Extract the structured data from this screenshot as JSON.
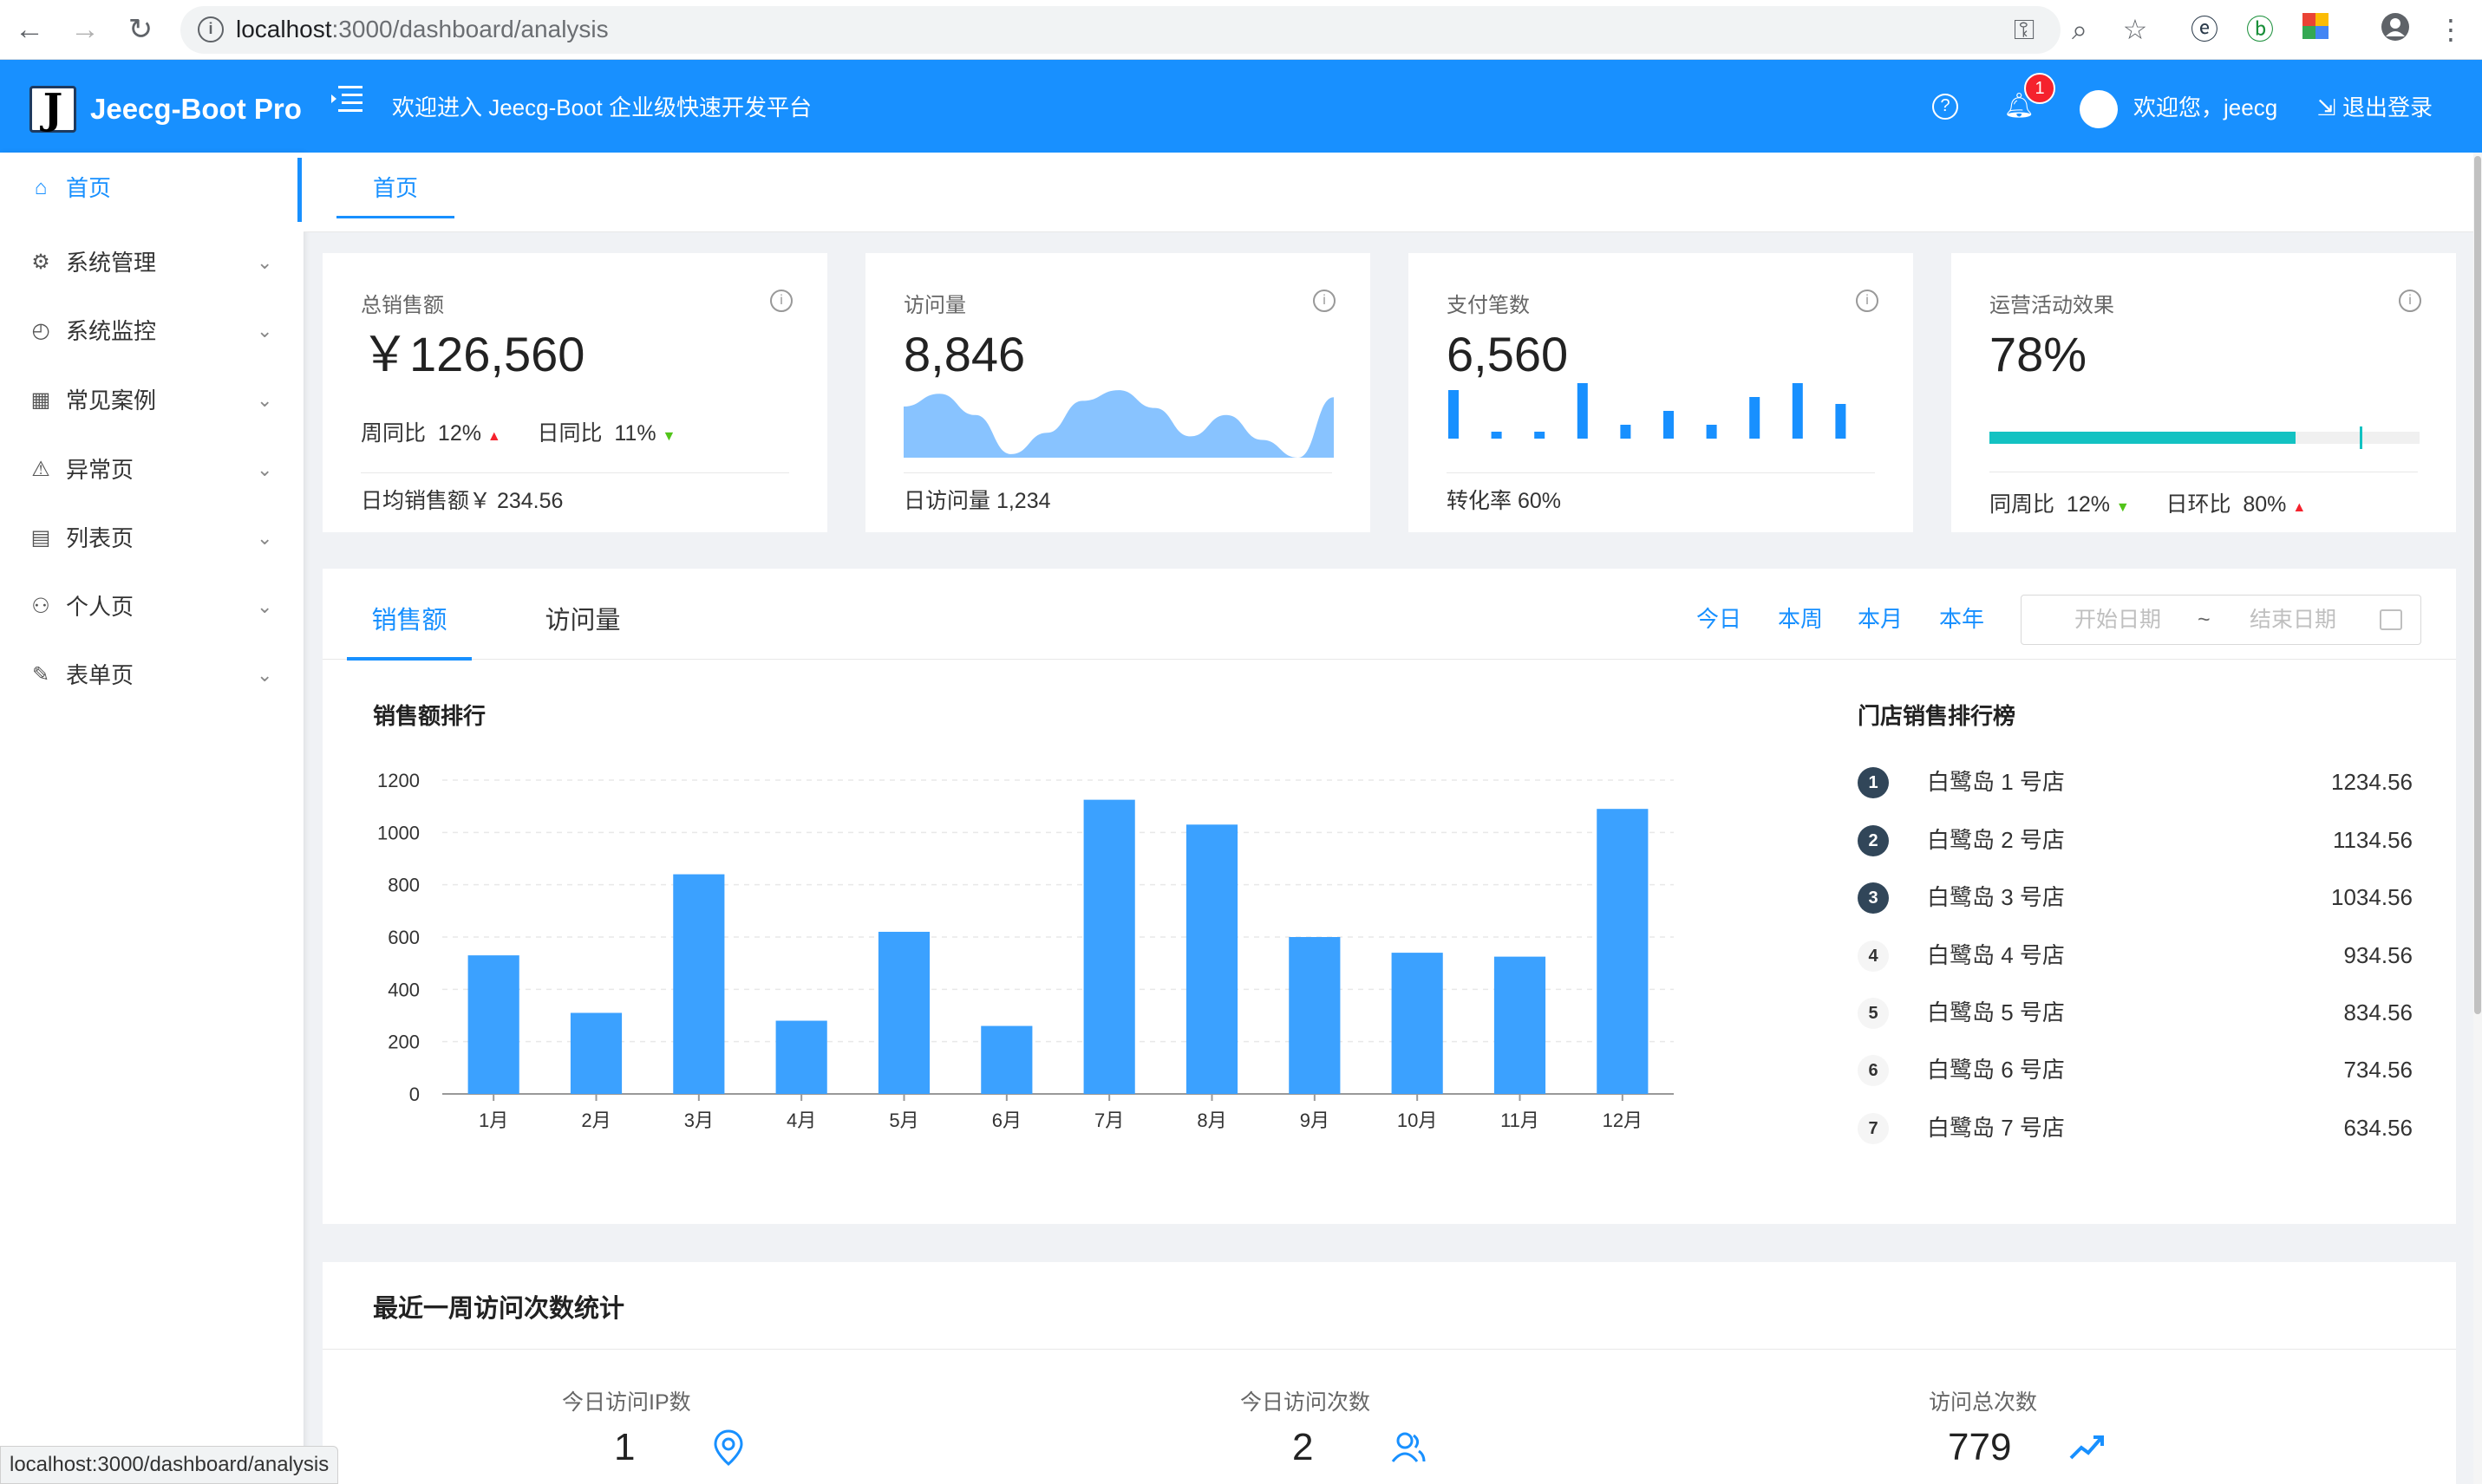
{
  "browser": {
    "url_host": "localhost",
    "url_path": ":3000/dashboard/analysis",
    "status_url": "localhost:3000/dashboard/analysis"
  },
  "header": {
    "brand": "Jeecg-Boot Pro",
    "logo_letter": "J",
    "welcome": "欢迎进入 Jeecg-Boot 企业级快速开发平台",
    "notification_count": "1",
    "user_greeting": "欢迎您，jeecg",
    "logout": "退出登录"
  },
  "sidebar": {
    "items": [
      {
        "label": "首页",
        "icon": "home-icon"
      },
      {
        "label": "系统管理",
        "icon": "gear-icon"
      },
      {
        "label": "系统监控",
        "icon": "dashboard-icon"
      },
      {
        "label": "常见案例",
        "icon": "qrcode-icon"
      },
      {
        "label": "异常页",
        "icon": "warning-icon"
      },
      {
        "label": "列表页",
        "icon": "table-icon"
      },
      {
        "label": "个人页",
        "icon": "user-icon"
      },
      {
        "label": "表单页",
        "icon": "form-icon"
      }
    ]
  },
  "tabs": {
    "home": "首页"
  },
  "kpi": {
    "total_sales": {
      "title": "总销售额",
      "value": "￥126,560",
      "week_label": "周同比",
      "week_value": "12%",
      "day_label": "日同比",
      "day_value": "11%",
      "footer": "日均销售额￥ 234.56"
    },
    "visits": {
      "title": "访问量",
      "value": "8,846",
      "footer": "日访问量 1,234",
      "area_points": [
        0.72,
        0.9,
        0.6,
        0.05,
        0.35,
        0.8,
        0.95,
        0.7,
        0.3,
        0.6,
        0.25,
        0.0,
        0.85
      ]
    },
    "payments": {
      "title": "支付笔数",
      "value": "6,560",
      "footer": "转化率 60%",
      "bar_values": [
        7,
        1,
        1,
        8,
        2,
        4,
        2,
        6,
        8,
        5
      ]
    },
    "campaign": {
      "title": "运营活动效果",
      "value": "78%",
      "progress": 0.78,
      "target": 0.86,
      "week_label": "同周比",
      "week_value": "12%",
      "day_label": "日环比",
      "day_value": "80%",
      "color": "#13c2c2"
    }
  },
  "sales_panel": {
    "tabs": [
      "销售额",
      "访问量"
    ],
    "ranges": [
      "今日",
      "本周",
      "本月",
      "本年"
    ],
    "date_start_placeholder": "开始日期",
    "date_tilde": "~",
    "date_end_placeholder": "结束日期",
    "chart_title": "销售额排行",
    "rank_title": "门店销售排行榜",
    "rankings": [
      {
        "rank": "1",
        "name": "白鹭岛 1 号店",
        "value": "1234.56"
      },
      {
        "rank": "2",
        "name": "白鹭岛 2 号店",
        "value": "1134.56"
      },
      {
        "rank": "3",
        "name": "白鹭岛 3 号店",
        "value": "1034.56"
      },
      {
        "rank": "4",
        "name": "白鹭岛 4 号店",
        "value": "934.56"
      },
      {
        "rank": "5",
        "name": "白鹭岛 5 号店",
        "value": "834.56"
      },
      {
        "rank": "6",
        "name": "白鹭岛 6 号店",
        "value": "734.56"
      },
      {
        "rank": "7",
        "name": "白鹭岛 7 号店",
        "value": "634.56"
      }
    ]
  },
  "chart_data": {
    "type": "bar",
    "categories": [
      "1月",
      "2月",
      "3月",
      "4月",
      "5月",
      "6月",
      "7月",
      "8月",
      "9月",
      "10月",
      "11月",
      "12月"
    ],
    "values": [
      530,
      310,
      840,
      280,
      620,
      260,
      1125,
      1030,
      600,
      540,
      525,
      1090
    ],
    "yticks": [
      "0",
      "200",
      "400",
      "600",
      "800",
      "1000",
      "1200"
    ],
    "ylim": [
      0,
      1200
    ],
    "color": "#3ba1ff",
    "grid": true
  },
  "week_stats": {
    "title": "最近一周访问次数统计",
    "items": [
      {
        "label": "今日访问IP数",
        "value": "1",
        "icon": "location-pin-icon"
      },
      {
        "label": "今日访问次数",
        "value": "2",
        "icon": "users-icon"
      },
      {
        "label": "访问总次数",
        "value": "779",
        "icon": "trend-up-icon"
      }
    ]
  }
}
